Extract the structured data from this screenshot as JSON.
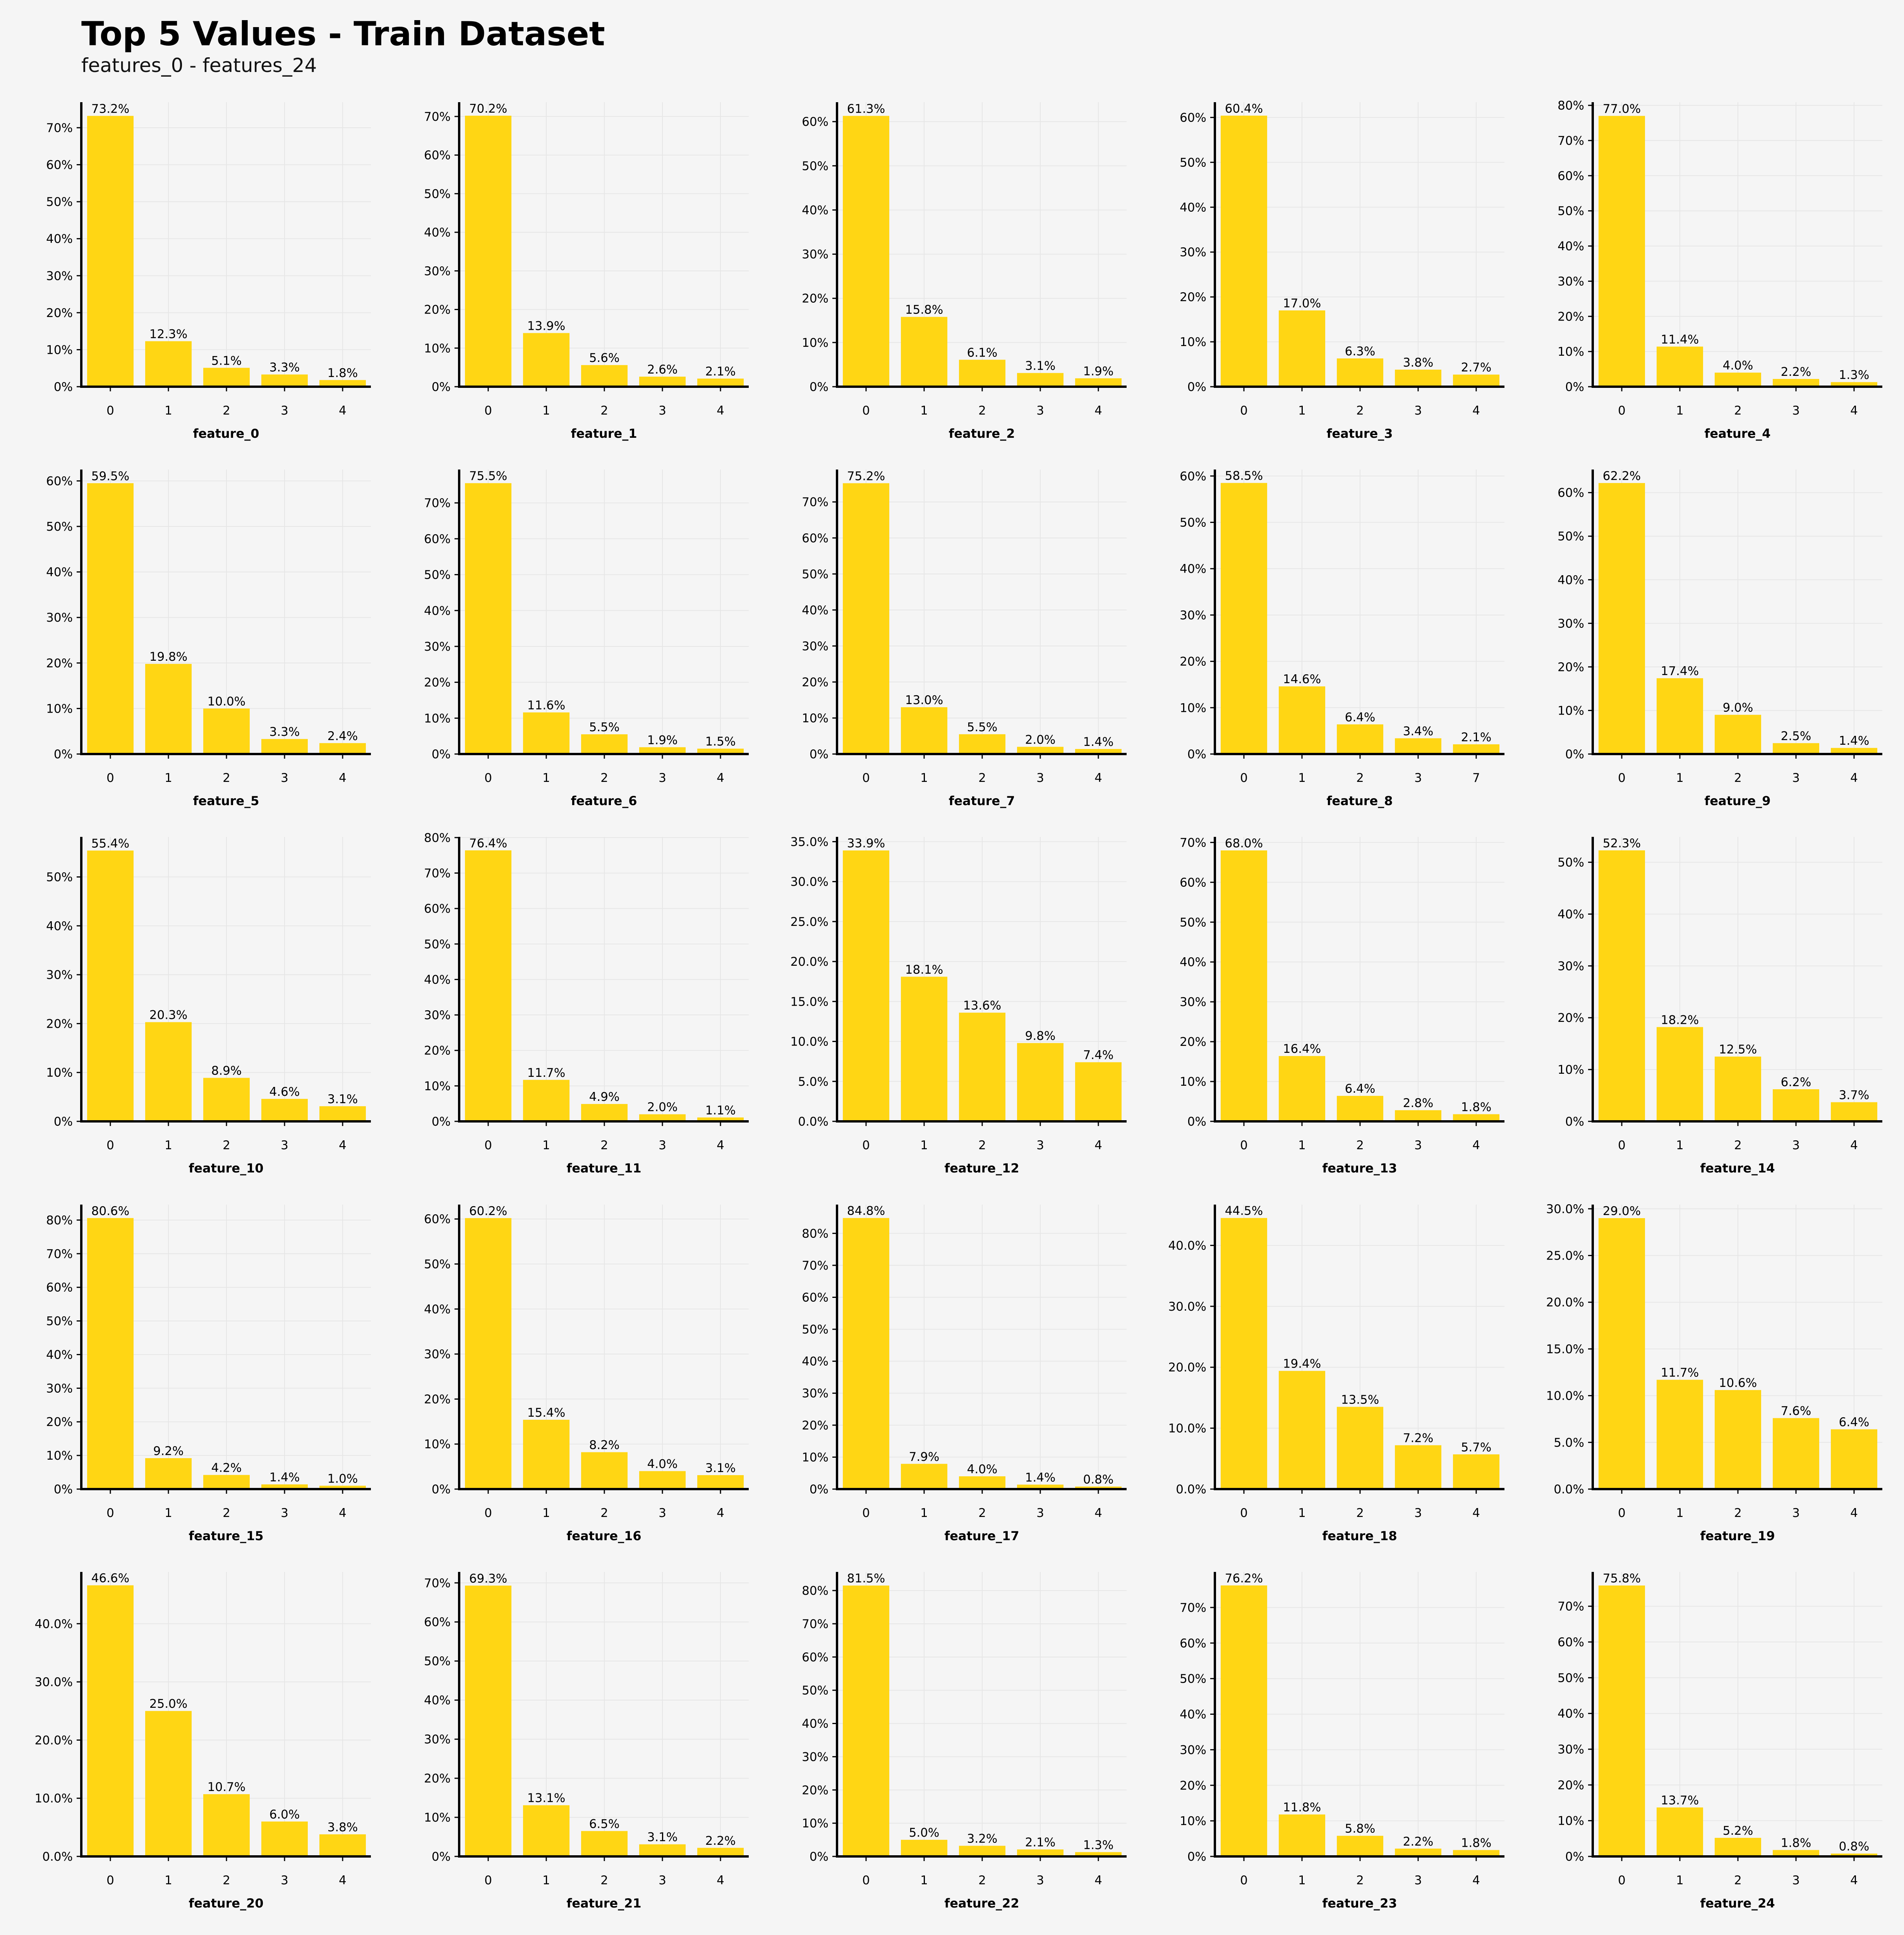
{
  "title": "Top 5 Values - Train Dataset",
  "subtitle": "features_0 - features_24",
  "colors": {
    "bar": "#ffd614",
    "background": "#f5f5f5",
    "axis": "#000000",
    "grid": "#e6e6e6"
  },
  "chart_data": [
    {
      "type": "bar",
      "xlabel": "feature_0",
      "categories": [
        "0",
        "1",
        "2",
        "3",
        "4"
      ],
      "values": [
        73.2,
        12.3,
        5.1,
        3.3,
        1.8
      ],
      "labels": [
        "73.2%",
        "12.3%",
        "5.1%",
        "3.3%",
        "1.8%"
      ],
      "yticks": [
        "0%",
        "10%",
        "20%",
        "30%",
        "40%",
        "50%",
        "60%",
        "70%"
      ],
      "ylim": [
        0,
        76.9
      ]
    },
    {
      "type": "bar",
      "xlabel": "feature_1",
      "categories": [
        "0",
        "1",
        "2",
        "3",
        "4"
      ],
      "values": [
        70.2,
        13.9,
        5.6,
        2.6,
        2.1
      ],
      "labels": [
        "70.2%",
        "13.9%",
        "5.6%",
        "2.6%",
        "2.1%"
      ],
      "yticks": [
        "0%",
        "10%",
        "20%",
        "30%",
        "40%",
        "50%",
        "60%",
        "70%"
      ],
      "ylim": [
        0,
        73.7
      ]
    },
    {
      "type": "bar",
      "xlabel": "feature_2",
      "categories": [
        "0",
        "1",
        "2",
        "3",
        "4"
      ],
      "values": [
        61.3,
        15.8,
        6.1,
        3.1,
        1.9
      ],
      "labels": [
        "61.3%",
        "15.8%",
        "6.1%",
        "3.1%",
        "1.9%"
      ],
      "yticks": [
        "0%",
        "10%",
        "20%",
        "30%",
        "40%",
        "50%",
        "60%"
      ],
      "ylim": [
        0,
        64.4
      ]
    },
    {
      "type": "bar",
      "xlabel": "feature_3",
      "categories": [
        "0",
        "1",
        "2",
        "3",
        "4"
      ],
      "values": [
        60.4,
        17.0,
        6.3,
        3.8,
        2.7
      ],
      "labels": [
        "60.4%",
        "17.0%",
        "6.3%",
        "3.8%",
        "2.7%"
      ],
      "yticks": [
        "0%",
        "10%",
        "20%",
        "30%",
        "40%",
        "50%",
        "60%"
      ],
      "ylim": [
        0,
        63.4
      ]
    },
    {
      "type": "bar",
      "xlabel": "feature_4",
      "categories": [
        "0",
        "1",
        "2",
        "3",
        "4"
      ],
      "values": [
        77.0,
        11.4,
        4.0,
        2.2,
        1.3
      ],
      "labels": [
        "77.0%",
        "11.4%",
        "4.0%",
        "2.2%",
        "1.3%"
      ],
      "yticks": [
        "0%",
        "10%",
        "20%",
        "30%",
        "40%",
        "50%",
        "60%",
        "70%",
        "80%"
      ],
      "ylim": [
        0,
        80.9
      ]
    },
    {
      "type": "bar",
      "xlabel": "feature_5",
      "categories": [
        "0",
        "1",
        "2",
        "3",
        "4"
      ],
      "values": [
        59.5,
        19.8,
        10.0,
        3.3,
        2.4
      ],
      "labels": [
        "59.5%",
        "19.8%",
        "10.0%",
        "3.3%",
        "2.4%"
      ],
      "yticks": [
        "0%",
        "10%",
        "20%",
        "30%",
        "40%",
        "50%",
        "60%"
      ],
      "ylim": [
        0,
        62.5
      ]
    },
    {
      "type": "bar",
      "xlabel": "feature_6",
      "categories": [
        "0",
        "1",
        "2",
        "3",
        "4"
      ],
      "values": [
        75.5,
        11.6,
        5.5,
        1.9,
        1.5
      ],
      "labels": [
        "75.5%",
        "11.6%",
        "5.5%",
        "1.9%",
        "1.5%"
      ],
      "yticks": [
        "0%",
        "10%",
        "20%",
        "30%",
        "40%",
        "50%",
        "60%",
        "70%"
      ],
      "ylim": [
        0,
        79.3
      ]
    },
    {
      "type": "bar",
      "xlabel": "feature_7",
      "categories": [
        "0",
        "1",
        "2",
        "3",
        "4"
      ],
      "values": [
        75.2,
        13.0,
        5.5,
        2.0,
        1.4
      ],
      "labels": [
        "75.2%",
        "13.0%",
        "5.5%",
        "2.0%",
        "1.4%"
      ],
      "yticks": [
        "0%",
        "10%",
        "20%",
        "30%",
        "40%",
        "50%",
        "60%",
        "70%"
      ],
      "ylim": [
        0,
        79.0
      ]
    },
    {
      "type": "bar",
      "xlabel": "feature_8",
      "categories": [
        "0",
        "1",
        "2",
        "3",
        "7"
      ],
      "values": [
        58.5,
        14.6,
        6.4,
        3.4,
        2.1
      ],
      "labels": [
        "58.5%",
        "14.6%",
        "6.4%",
        "3.4%",
        "2.1%"
      ],
      "yticks": [
        "0%",
        "10%",
        "20%",
        "30%",
        "40%",
        "50%",
        "60%"
      ],
      "ylim": [
        0,
        61.4
      ]
    },
    {
      "type": "bar",
      "xlabel": "feature_9",
      "categories": [
        "0",
        "1",
        "2",
        "3",
        "4"
      ],
      "values": [
        62.2,
        17.4,
        9.0,
        2.5,
        1.4
      ],
      "labels": [
        "62.2%",
        "17.4%",
        "9.0%",
        "2.5%",
        "1.4%"
      ],
      "yticks": [
        "0%",
        "10%",
        "20%",
        "30%",
        "40%",
        "50%",
        "60%"
      ],
      "ylim": [
        0,
        65.3
      ]
    },
    {
      "type": "bar",
      "xlabel": "feature_10",
      "categories": [
        "0",
        "1",
        "2",
        "3",
        "4"
      ],
      "values": [
        55.4,
        20.3,
        8.9,
        4.6,
        3.1
      ],
      "labels": [
        "55.4%",
        "20.3%",
        "8.9%",
        "4.6%",
        "3.1%"
      ],
      "yticks": [
        "0%",
        "10%",
        "20%",
        "30%",
        "40%",
        "50%"
      ],
      "ylim": [
        0,
        58.2
      ]
    },
    {
      "type": "bar",
      "xlabel": "feature_11",
      "categories": [
        "0",
        "1",
        "2",
        "3",
        "4"
      ],
      "values": [
        76.4,
        11.7,
        4.9,
        2.0,
        1.1
      ],
      "labels": [
        "76.4%",
        "11.7%",
        "4.9%",
        "2.0%",
        "1.1%"
      ],
      "yticks": [
        "0%",
        "10%",
        "20%",
        "30%",
        "40%",
        "50%",
        "60%",
        "70%",
        "80%"
      ],
      "ylim": [
        0,
        80.2
      ]
    },
    {
      "type": "bar",
      "xlabel": "feature_12",
      "categories": [
        "0",
        "1",
        "2",
        "3",
        "4"
      ],
      "values": [
        33.9,
        18.1,
        13.6,
        9.8,
        7.4
      ],
      "labels": [
        "33.9%",
        "18.1%",
        "13.6%",
        "9.8%",
        "7.4%"
      ],
      "yticks": [
        "0.0%",
        "5.0%",
        "10.0%",
        "15.0%",
        "20.0%",
        "25.0%",
        "30.0%",
        "35.0%"
      ],
      "ytick_step": 5,
      "ylim": [
        0,
        35.6
      ]
    },
    {
      "type": "bar",
      "xlabel": "feature_13",
      "categories": [
        "0",
        "1",
        "2",
        "3",
        "4"
      ],
      "values": [
        68.0,
        16.4,
        6.4,
        2.8,
        1.8
      ],
      "labels": [
        "68.0%",
        "16.4%",
        "6.4%",
        "2.8%",
        "1.8%"
      ],
      "yticks": [
        "0%",
        "10%",
        "20%",
        "30%",
        "40%",
        "50%",
        "60%",
        "70%"
      ],
      "ylim": [
        0,
        71.4
      ]
    },
    {
      "type": "bar",
      "xlabel": "feature_14",
      "categories": [
        "0",
        "1",
        "2",
        "3",
        "4"
      ],
      "values": [
        52.3,
        18.2,
        12.5,
        6.2,
        3.7
      ],
      "labels": [
        "52.3%",
        "18.2%",
        "12.5%",
        "6.2%",
        "3.7%"
      ],
      "yticks": [
        "0%",
        "10%",
        "20%",
        "30%",
        "40%",
        "50%"
      ],
      "ylim": [
        0,
        54.9
      ]
    },
    {
      "type": "bar",
      "xlabel": "feature_15",
      "categories": [
        "0",
        "1",
        "2",
        "3",
        "4"
      ],
      "values": [
        80.6,
        9.2,
        4.2,
        1.4,
        1.0
      ],
      "labels": [
        "80.6%",
        "9.2%",
        "4.2%",
        "1.4%",
        "1.0%"
      ],
      "yticks": [
        "0%",
        "10%",
        "20%",
        "30%",
        "40%",
        "50%",
        "60%",
        "70%",
        "80%"
      ],
      "ylim": [
        0,
        84.6
      ]
    },
    {
      "type": "bar",
      "xlabel": "feature_16",
      "categories": [
        "0",
        "1",
        "2",
        "3",
        "4"
      ],
      "values": [
        60.2,
        15.4,
        8.2,
        4.0,
        3.1
      ],
      "labels": [
        "60.2%",
        "15.4%",
        "8.2%",
        "4.0%",
        "3.1%"
      ],
      "yticks": [
        "0%",
        "10%",
        "20%",
        "30%",
        "40%",
        "50%",
        "60%"
      ],
      "ylim": [
        0,
        63.2
      ]
    },
    {
      "type": "bar",
      "xlabel": "feature_17",
      "categories": [
        "0",
        "1",
        "2",
        "3",
        "4"
      ],
      "values": [
        84.8,
        7.9,
        4.0,
        1.4,
        0.8
      ],
      "labels": [
        "84.8%",
        "7.9%",
        "4.0%",
        "1.4%",
        "0.8%"
      ],
      "yticks": [
        "0%",
        "10%",
        "20%",
        "30%",
        "40%",
        "50%",
        "60%",
        "70%",
        "80%"
      ],
      "ylim": [
        0,
        89.0
      ]
    },
    {
      "type": "bar",
      "xlabel": "feature_18",
      "categories": [
        "0",
        "1",
        "2",
        "3",
        "4"
      ],
      "values": [
        44.5,
        19.4,
        13.5,
        7.2,
        5.7
      ],
      "labels": [
        "44.5%",
        "19.4%",
        "13.5%",
        "7.2%",
        "5.7%"
      ],
      "yticks": [
        "0.0%",
        "10.0%",
        "20.0%",
        "30.0%",
        "40.0%"
      ],
      "ylim": [
        0,
        46.7
      ]
    },
    {
      "type": "bar",
      "xlabel": "feature_19",
      "categories": [
        "0",
        "1",
        "2",
        "3",
        "4"
      ],
      "values": [
        29.0,
        11.7,
        10.6,
        7.6,
        6.4
      ],
      "labels": [
        "29.0%",
        "11.7%",
        "10.6%",
        "7.6%",
        "6.4%"
      ],
      "yticks": [
        "0.0%",
        "5.0%",
        "10.0%",
        "15.0%",
        "20.0%",
        "25.0%",
        "30.0%"
      ],
      "ytick_step": 5,
      "ylim": [
        0,
        30.45
      ]
    },
    {
      "type": "bar",
      "xlabel": "feature_20",
      "categories": [
        "0",
        "1",
        "2",
        "3",
        "4"
      ],
      "values": [
        46.6,
        25.0,
        10.7,
        6.0,
        3.8
      ],
      "labels": [
        "46.6%",
        "25.0%",
        "10.7%",
        "6.0%",
        "3.8%"
      ],
      "yticks": [
        "0.0%",
        "10.0%",
        "20.0%",
        "30.0%",
        "40.0%"
      ],
      "ylim": [
        0,
        48.9
      ]
    },
    {
      "type": "bar",
      "xlabel": "feature_21",
      "categories": [
        "0",
        "1",
        "2",
        "3",
        "4"
      ],
      "values": [
        69.3,
        13.1,
        6.5,
        3.1,
        2.2
      ],
      "labels": [
        "69.3%",
        "13.1%",
        "6.5%",
        "3.1%",
        "2.2%"
      ],
      "yticks": [
        "0%",
        "10%",
        "20%",
        "30%",
        "40%",
        "50%",
        "60%",
        "70%"
      ],
      "ylim": [
        0,
        72.8
      ]
    },
    {
      "type": "bar",
      "xlabel": "feature_22",
      "categories": [
        "0",
        "1",
        "2",
        "3",
        "4"
      ],
      "values": [
        81.5,
        5.0,
        3.2,
        2.1,
        1.3
      ],
      "labels": [
        "81.5%",
        "5.0%",
        "3.2%",
        "2.1%",
        "1.3%"
      ],
      "yticks": [
        "0%",
        "10%",
        "20%",
        "30%",
        "40%",
        "50%",
        "60%",
        "70%",
        "80%"
      ],
      "ylim": [
        0,
        85.6
      ]
    },
    {
      "type": "bar",
      "xlabel": "feature_23",
      "categories": [
        "0",
        "1",
        "2",
        "3",
        "4"
      ],
      "values": [
        76.2,
        11.8,
        5.8,
        2.2,
        1.8
      ],
      "labels": [
        "76.2%",
        "11.8%",
        "5.8%",
        "2.2%",
        "1.8%"
      ],
      "yticks": [
        "0%",
        "10%",
        "20%",
        "30%",
        "40%",
        "50%",
        "60%",
        "70%"
      ],
      "ylim": [
        0,
        80.0
      ]
    },
    {
      "type": "bar",
      "xlabel": "feature_24",
      "categories": [
        "0",
        "1",
        "2",
        "3",
        "4"
      ],
      "values": [
        75.8,
        13.7,
        5.2,
        1.8,
        0.8
      ],
      "labels": [
        "75.8%",
        "13.7%",
        "5.2%",
        "1.8%",
        "0.8%"
      ],
      "yticks": [
        "0%",
        "10%",
        "20%",
        "30%",
        "40%",
        "50%",
        "60%",
        "70%"
      ],
      "ylim": [
        0,
        79.6
      ]
    }
  ]
}
